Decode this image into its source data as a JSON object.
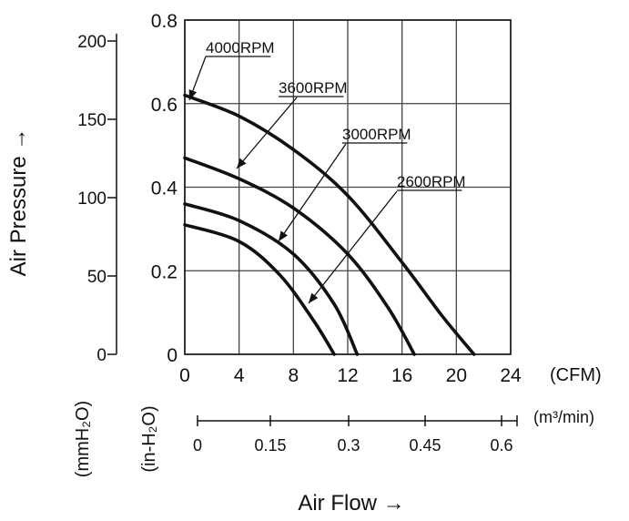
{
  "chart_data": {
    "type": "line",
    "ylabel": "Air Pressure →",
    "xlabel": "Air Flow →",
    "x_unit_primary": "(CFM)",
    "x_unit_secondary": "(m³/min)",
    "y_unit_inh2o": "(in-H₂O)",
    "y_unit_mmh2o": "(mmH₂O)",
    "xlim": [
      0,
      24
    ],
    "ylim": [
      0,
      0.8
    ],
    "grid": true,
    "x_ticks": [
      "0",
      "4",
      "8",
      "12",
      "16",
      "20",
      "24"
    ],
    "x_ticks_m3min": [
      "0",
      "0.15",
      "0.3",
      "0.45",
      "0.6"
    ],
    "y_ticks_inh2o": [
      "0",
      "0.2",
      "0.4",
      "0.6",
      "0.8"
    ],
    "y_ticks_mmh2o": [
      "0",
      "50",
      "100",
      "150",
      "200"
    ],
    "series": [
      {
        "name": "4000RPM",
        "x": [
          0,
          4,
          8,
          12,
          16,
          19,
          21.3
        ],
        "y": [
          0.62,
          0.57,
          0.49,
          0.38,
          0.22,
          0.09,
          0
        ]
      },
      {
        "name": "3600RPM",
        "x": [
          0,
          4,
          8,
          12,
          15,
          16.9
        ],
        "y": [
          0.47,
          0.42,
          0.35,
          0.24,
          0.11,
          0
        ]
      },
      {
        "name": "3000RPM",
        "x": [
          0,
          4,
          8,
          11,
          12.7
        ],
        "y": [
          0.36,
          0.32,
          0.24,
          0.12,
          0
        ]
      },
      {
        "name": "2600RPM",
        "x": [
          0,
          4,
          7,
          9.5,
          11.0
        ],
        "y": [
          0.31,
          0.27,
          0.19,
          0.08,
          0
        ]
      }
    ]
  }
}
